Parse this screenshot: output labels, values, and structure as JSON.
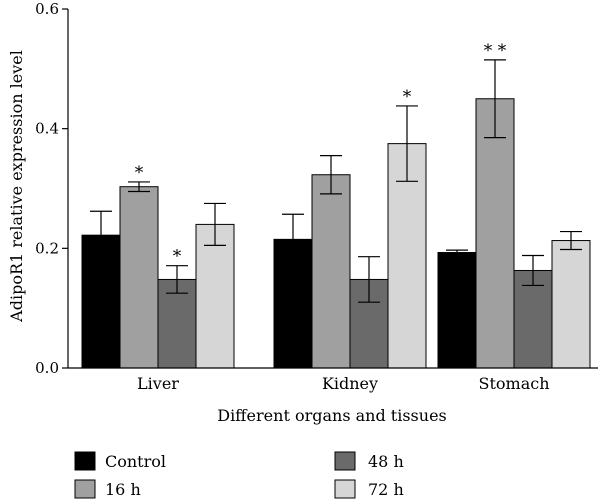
{
  "chart_data": {
    "type": "bar",
    "title": "",
    "xlabel": "Different organs and tissues",
    "ylabel": "AdipoR1 relative expression level",
    "ylim": [
      0,
      0.6
    ],
    "yticks": [
      "0.0",
      "0.2",
      "0.4",
      "0.6"
    ],
    "ytick_values": [
      0,
      0.2,
      0.4,
      0.6
    ],
    "categories": [
      "Liver",
      "Kidney",
      "Stomach"
    ],
    "series": [
      {
        "name": "Control",
        "color": "#000000",
        "values": [
          0.222,
          0.215,
          0.193
        ],
        "errors": [
          0.04,
          0.042,
          0.004
        ],
        "sig": [
          "",
          "",
          ""
        ]
      },
      {
        "name": "16 h",
        "color": "#a0a0a0",
        "values": [
          0.303,
          0.323,
          0.45
        ],
        "errors": [
          0.008,
          0.032,
          0.065
        ],
        "sig": [
          "*",
          "",
          "* *"
        ]
      },
      {
        "name": "48 h",
        "color": "#6a6a6a",
        "values": [
          0.148,
          0.148,
          0.163
        ],
        "errors": [
          0.023,
          0.038,
          0.025
        ],
        "sig": [
          "*",
          "",
          ""
        ]
      },
      {
        "name": "72 h",
        "color": "#d6d6d6",
        "values": [
          0.24,
          0.375,
          0.213
        ],
        "errors": [
          0.035,
          0.063,
          0.015
        ],
        "sig": [
          "",
          "*",
          ""
        ]
      }
    ],
    "legend_position": "bottom",
    "grid": false
  }
}
